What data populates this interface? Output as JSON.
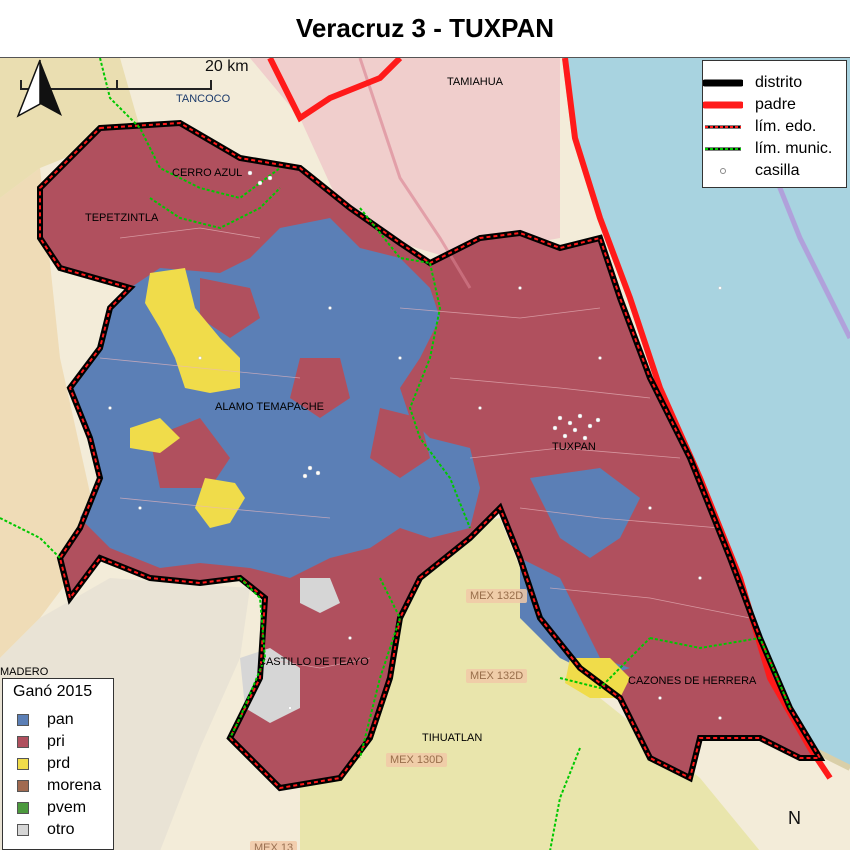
{
  "title": "Veracruz 3 - TUXPAN",
  "scale_label": "20 km",
  "north_label": "N",
  "places": {
    "tancoco": "TANCOCO",
    "tamiahua": "TAMIAHUA",
    "cerro_azul": "CERRO AZUL",
    "tepetzintla": "TEPETZINTLA",
    "alamo_temapache": "ALAMO TEMAPACHE",
    "tuxpan": "TUXPAN",
    "castillo_de_teayo": "CASTILLO DE TEAYO",
    "cazones_de_herrera": "CAZONES DE HERRERA",
    "tihuatlan": "TIHUATLAN",
    "madero": "MADERO"
  },
  "roads": {
    "r1": "MEX 132D",
    "r2": "MEX 132D",
    "r3": "MEX 130D",
    "r4": "MEX 13"
  },
  "legend_top": {
    "distrito": "distrito",
    "padre": "padre",
    "lim_edo": "lím. edo.",
    "lim_munic": "lím. munic.",
    "casilla": "casilla"
  },
  "legend_bottom": {
    "title": "Ganó 2015",
    "items": [
      {
        "label": "pan",
        "color": "#5b7fb6"
      },
      {
        "label": "pri",
        "color": "#b0505e"
      },
      {
        "label": "prd",
        "color": "#f0dc4a"
      },
      {
        "label": "morena",
        "color": "#a06a50"
      },
      {
        "label": "pvem",
        "color": "#4c9a3e"
      },
      {
        "label": "otro",
        "color": "#d6d6d6"
      }
    ]
  },
  "colors": {
    "sea": "#a8d3e0",
    "land": "#f3ecd9",
    "pan": "#5b7fb6",
    "pri": "#b0505e",
    "prd": "#f0dc4a",
    "otro": "#d6d6d6",
    "district_border": "#000000",
    "parent_border": "#ff1a1a",
    "muni_border": "#00c800"
  }
}
